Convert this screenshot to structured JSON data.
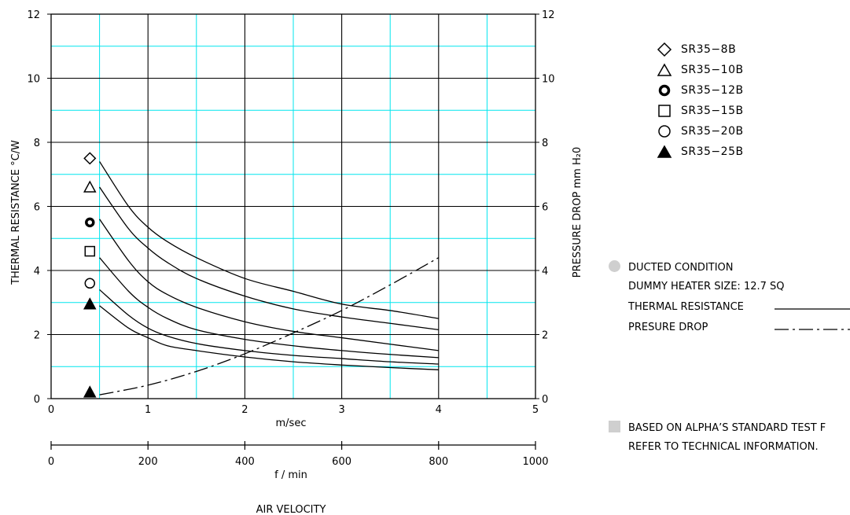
{
  "chart_data": {
    "type": "line",
    "xlabel": "m/sec",
    "xlabel_secondary": "f / min",
    "axis_title": "AIR VELOCITY",
    "ylabel": "THERMAL RESISTANCE  °C/W",
    "ylabel_right": "PRESSURE  DROP    mm H₂0",
    "xlim": [
      0,
      5
    ],
    "xlim_secondary": [
      0,
      1000
    ],
    "ylim": [
      0,
      12
    ],
    "ylim_right": [
      0,
      12
    ],
    "x_ticks": [
      "0",
      "1",
      "2",
      "3",
      "4",
      "5"
    ],
    "x_ticks_secondary": [
      "0",
      "200",
      "400",
      "600",
      "800",
      "1000"
    ],
    "y_ticks": [
      "0",
      "2",
      "4",
      "6",
      "8",
      "10",
      "12"
    ],
    "y_ticks_right": [
      "0",
      "2",
      "4",
      "6",
      "8",
      "10",
      "12"
    ],
    "grid": true,
    "series": [
      {
        "name": "SR35−8B",
        "marker": "diamond",
        "marker_value": 7.5,
        "x": [
          0.5,
          0.8,
          1.0,
          1.2,
          1.5,
          2.0,
          2.5,
          3.0,
          3.5,
          4.0
        ],
        "y": [
          7.4,
          6.0,
          5.35,
          4.9,
          4.4,
          3.75,
          3.35,
          2.95,
          2.75,
          2.5
        ]
      },
      {
        "name": "SR35−10B",
        "marker": "triangle",
        "marker_value": 6.6,
        "x": [
          0.5,
          0.8,
          1.0,
          1.2,
          1.5,
          2.0,
          2.5,
          3.0,
          3.5,
          4.0
        ],
        "y": [
          6.6,
          5.3,
          4.7,
          4.25,
          3.75,
          3.2,
          2.8,
          2.55,
          2.35,
          2.15
        ]
      },
      {
        "name": "SR35−12B",
        "marker": "bold-circle",
        "marker_value": 5.5,
        "x": [
          0.5,
          0.8,
          1.0,
          1.2,
          1.5,
          2.0,
          2.5,
          3.0,
          3.5,
          4.0
        ],
        "y": [
          5.6,
          4.3,
          3.65,
          3.25,
          2.85,
          2.4,
          2.1,
          1.9,
          1.7,
          1.5
        ]
      },
      {
        "name": "SR35−15B",
        "marker": "square",
        "marker_value": 4.6,
        "x": [
          0.5,
          0.8,
          1.0,
          1.2,
          1.5,
          2.0,
          2.5,
          3.0,
          3.5,
          4.0
        ],
        "y": [
          4.4,
          3.35,
          2.85,
          2.5,
          2.15,
          1.85,
          1.65,
          1.5,
          1.38,
          1.28
        ]
      },
      {
        "name": "SR35−20B",
        "marker": "circle",
        "marker_value": 3.6,
        "x": [
          0.5,
          0.8,
          1.0,
          1.2,
          1.5,
          2.0,
          2.5,
          3.0,
          3.5,
          4.0
        ],
        "y": [
          3.4,
          2.6,
          2.2,
          1.95,
          1.72,
          1.5,
          1.35,
          1.25,
          1.15,
          1.08
        ]
      },
      {
        "name": "SR35−25B",
        "marker": "filled-triangle",
        "marker_value": 2.95,
        "x": [
          0.5,
          0.8,
          1.0,
          1.2,
          1.5,
          2.0,
          2.5,
          3.0,
          3.5,
          4.0
        ],
        "y": [
          2.9,
          2.2,
          1.9,
          1.65,
          1.5,
          1.3,
          1.15,
          1.05,
          0.97,
          0.9
        ]
      }
    ],
    "pressure_drop": {
      "marker": "filled-triangle",
      "marker_value": 0.2,
      "x": [
        0.5,
        1.0,
        1.5,
        2.0,
        2.5,
        3.0,
        3.5,
        4.0
      ],
      "y": [
        0.12,
        0.42,
        0.85,
        1.4,
        2.05,
        2.75,
        3.55,
        4.4
      ]
    }
  },
  "notes": {
    "condition": "DUCTED CONDITION",
    "heater": "DUMMY HEATER SIZE: 12.7 SQ",
    "thermal": "THERMAL RESISTANCE",
    "pressure": "PRESURE DROP",
    "standard_line1": "BASED ON ALPHA’S STANDARD TEST F",
    "standard_line2": "REFER TO TECHNICAL INFORMATION."
  },
  "colors": {
    "major_grid": "#000000",
    "minor_grid": "#00e5ee",
    "bullet": "#cfcfcf"
  }
}
